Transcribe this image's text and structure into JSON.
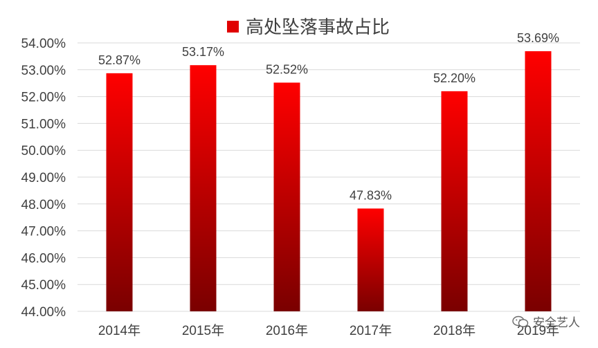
{
  "chart_data": {
    "type": "bar",
    "title": "",
    "legend": {
      "entries": [
        "高处坠落事故占比"
      ],
      "position": "top"
    },
    "categories": [
      "2014年",
      "2015年",
      "2016年",
      "2017年",
      "2018年",
      "2019年"
    ],
    "series": [
      {
        "name": "高处坠落事故占比",
        "values": [
          52.87,
          53.17,
          52.52,
          47.83,
          52.2,
          53.69
        ]
      }
    ],
    "data_labels": [
      "52.87%",
      "53.17%",
      "52.52%",
      "47.83%",
      "52.20%",
      "53.69%"
    ],
    "ylim": [
      44,
      54
    ],
    "yticks": [
      "44.00%",
      "45.00%",
      "46.00%",
      "47.00%",
      "48.00%",
      "49.00%",
      "50.00%",
      "51.00%",
      "52.00%",
      "53.00%",
      "54.00%"
    ],
    "xlabel": "",
    "ylabel": "",
    "grid": true,
    "colors": {
      "bar_top": "#ff0000",
      "bar_bottom": "#7a0000",
      "legend_swatch": "#e00000"
    }
  },
  "watermark": {
    "text": "安全艺人",
    "icon": "wechat-icon"
  }
}
